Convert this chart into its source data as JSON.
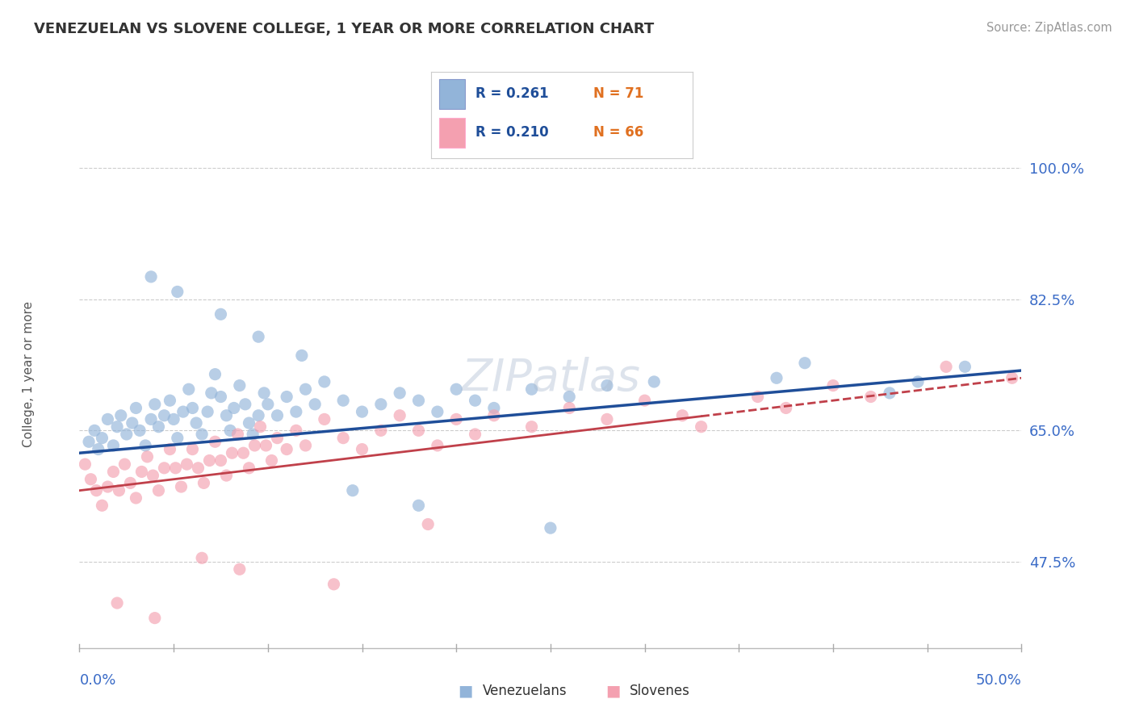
{
  "title": "VENEZUELAN VS SLOVENE COLLEGE, 1 YEAR OR MORE CORRELATION CHART",
  "source_text": "Source: ZipAtlas.com",
  "ylabel_ticks": [
    47.5,
    65.0,
    82.5,
    100.0
  ],
  "xlim": [
    0.0,
    50.0
  ],
  "ylim": [
    36.0,
    108.0
  ],
  "legend_blue_r": "R = 0.261",
  "legend_blue_n": "N = 71",
  "legend_pink_r": "R = 0.210",
  "legend_pink_n": "N = 66",
  "legend_label_blue": "Venezuelans",
  "legend_label_pink": "Slovenes",
  "blue_color": "#92B4D9",
  "pink_color": "#F4A0B0",
  "blue_line_color": "#1F4E99",
  "pink_line_color": "#C0404A",
  "blue_intercept": 62.0,
  "blue_slope": 0.22,
  "pink_intercept": 57.0,
  "pink_slope": 0.3,
  "venezuelan_x": [
    0.5,
    0.8,
    1.0,
    1.2,
    1.5,
    1.8,
    2.0,
    2.2,
    2.5,
    2.8,
    3.0,
    3.2,
    3.5,
    3.8,
    4.0,
    4.2,
    4.5,
    4.8,
    5.0,
    5.2,
    5.5,
    5.8,
    6.0,
    6.2,
    6.5,
    6.8,
    7.0,
    7.2,
    7.5,
    7.8,
    8.0,
    8.2,
    8.5,
    8.8,
    9.0,
    9.2,
    9.5,
    9.8,
    10.0,
    10.5,
    11.0,
    11.5,
    12.0,
    12.5,
    13.0,
    14.0,
    15.0,
    16.0,
    17.0,
    18.0,
    19.0,
    20.0,
    21.0,
    22.0,
    24.0,
    26.0,
    28.0,
    30.5,
    37.0,
    38.5,
    43.0,
    44.5,
    47.0,
    3.8,
    5.2,
    7.5,
    9.5,
    11.8,
    14.5,
    18.0,
    25.0
  ],
  "venezuelan_y": [
    63.5,
    65.0,
    62.5,
    64.0,
    66.5,
    63.0,
    65.5,
    67.0,
    64.5,
    66.0,
    68.0,
    65.0,
    63.0,
    66.5,
    68.5,
    65.5,
    67.0,
    69.0,
    66.5,
    64.0,
    67.5,
    70.5,
    68.0,
    66.0,
    64.5,
    67.5,
    70.0,
    72.5,
    69.5,
    67.0,
    65.0,
    68.0,
    71.0,
    68.5,
    66.0,
    64.5,
    67.0,
    70.0,
    68.5,
    67.0,
    69.5,
    67.5,
    70.5,
    68.5,
    71.5,
    69.0,
    67.5,
    68.5,
    70.0,
    69.0,
    67.5,
    70.5,
    69.0,
    68.0,
    70.5,
    69.5,
    71.0,
    71.5,
    72.0,
    74.0,
    70.0,
    71.5,
    73.5,
    85.5,
    83.5,
    80.5,
    77.5,
    75.0,
    57.0,
    55.0,
    52.0
  ],
  "slovene_x": [
    0.3,
    0.6,
    0.9,
    1.2,
    1.5,
    1.8,
    2.1,
    2.4,
    2.7,
    3.0,
    3.3,
    3.6,
    3.9,
    4.2,
    4.5,
    4.8,
    5.1,
    5.4,
    5.7,
    6.0,
    6.3,
    6.6,
    6.9,
    7.2,
    7.5,
    7.8,
    8.1,
    8.4,
    8.7,
    9.0,
    9.3,
    9.6,
    9.9,
    10.2,
    10.5,
    11.0,
    11.5,
    12.0,
    13.0,
    14.0,
    15.0,
    16.0,
    17.0,
    18.0,
    19.0,
    20.0,
    21.0,
    22.0,
    24.0,
    26.0,
    28.0,
    30.0,
    32.0,
    33.0,
    36.0,
    37.5,
    40.0,
    42.0,
    46.0,
    49.5,
    2.0,
    4.0,
    6.5,
    8.5,
    13.5,
    18.5
  ],
  "slovene_y": [
    60.5,
    58.5,
    57.0,
    55.0,
    57.5,
    59.5,
    57.0,
    60.5,
    58.0,
    56.0,
    59.5,
    61.5,
    59.0,
    57.0,
    60.0,
    62.5,
    60.0,
    57.5,
    60.5,
    62.5,
    60.0,
    58.0,
    61.0,
    63.5,
    61.0,
    59.0,
    62.0,
    64.5,
    62.0,
    60.0,
    63.0,
    65.5,
    63.0,
    61.0,
    64.0,
    62.5,
    65.0,
    63.0,
    66.5,
    64.0,
    62.5,
    65.0,
    67.0,
    65.0,
    63.0,
    66.5,
    64.5,
    67.0,
    65.5,
    68.0,
    66.5,
    69.0,
    67.0,
    65.5,
    69.5,
    68.0,
    71.0,
    69.5,
    73.5,
    72.0,
    42.0,
    40.0,
    48.0,
    46.5,
    44.5,
    52.5
  ]
}
